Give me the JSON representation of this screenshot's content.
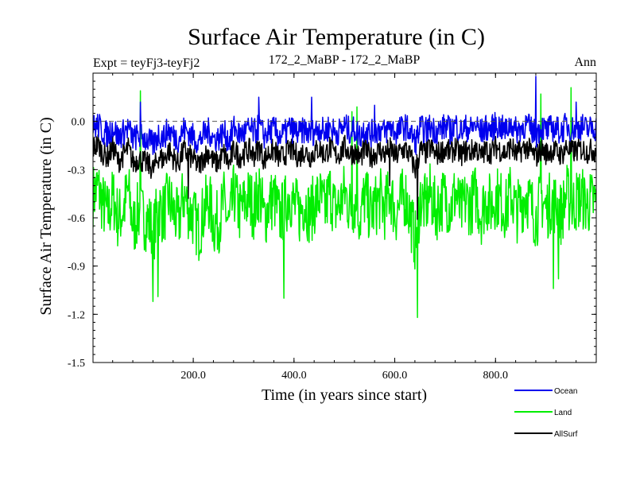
{
  "chart_data": {
    "type": "line",
    "title": "Surface Air Temperature (in C)",
    "subtitle_left": "Expt = teyFj3-teyFj2",
    "subtitle_center": "172_2_MaBP - 172_2_MaBP",
    "subtitle_right": "Ann",
    "xlabel": "Time (in years since start)",
    "ylabel": "Surface Air Temperature (in C)",
    "xlim": [
      1,
      1000
    ],
    "ylim": [
      -1.5,
      0.3
    ],
    "x_ticks": [
      200,
      400,
      600,
      800
    ],
    "x_tick_labels": [
      "200.0",
      "400.0",
      "600.0",
      "800.0"
    ],
    "y_ticks": [
      0.0,
      -0.3,
      -0.6,
      -0.9,
      -1.2,
      -1.5
    ],
    "y_tick_labels": [
      "0.0",
      "-0.3",
      "-0.6",
      "-0.9",
      "-1.2",
      "-1.5"
    ],
    "zero_line": true,
    "series": [
      {
        "name": "Land",
        "color": "#00ee00",
        "x_start": 1,
        "x_step": 10,
        "values": [
          -0.46,
          -0.41,
          -0.52,
          -0.58,
          -0.47,
          -0.61,
          -0.55,
          -0.43,
          -0.66,
          -0.56,
          -0.6,
          -0.62,
          -0.7,
          -0.52,
          -0.58,
          -0.48,
          -0.57,
          -0.63,
          -0.45,
          -0.55,
          -0.6,
          -0.68,
          -0.56,
          -0.49,
          -0.64,
          -0.62,
          -0.5,
          -0.66,
          -0.44,
          -0.57,
          -0.52,
          -0.47,
          -0.55,
          -0.42,
          -0.61,
          -0.51,
          -0.48,
          -0.6,
          -0.54,
          -0.45,
          -0.53,
          -0.57,
          -0.49,
          -0.58,
          -0.51,
          -0.47,
          -0.56,
          -0.43,
          -0.55,
          -0.52,
          -0.44,
          -0.54,
          -0.5,
          -0.6,
          -0.46,
          -0.57,
          -0.53,
          -0.48,
          -0.55,
          -0.43,
          -0.58,
          -0.51,
          -0.46,
          -0.59,
          -0.75,
          -0.48,
          -0.53,
          -0.45,
          -0.56,
          -0.5,
          -0.47,
          -0.54,
          -0.44,
          -0.57,
          -0.49,
          -0.52,
          -0.45,
          -0.58,
          -0.48,
          -0.53,
          -0.46,
          -0.5,
          -0.55,
          -0.44,
          -0.57,
          -0.51,
          -0.45,
          -0.53,
          -0.6,
          -0.47,
          -0.55,
          -0.49,
          -0.52,
          -0.58,
          -0.45,
          -0.54,
          -0.49,
          -0.47,
          -0.52,
          -0.5
        ],
        "spikes": [
          [
            95,
            0.19
          ],
          [
            120,
            -1.12
          ],
          [
            130,
            -1.09
          ],
          [
            380,
            -1.1
          ],
          [
            515,
            0.06
          ],
          [
            525,
            0.09
          ],
          [
            645,
            -1.22
          ],
          [
            890,
            -0.92
          ],
          [
            890,
            0.17
          ],
          [
            915,
            -1.04
          ],
          [
            925,
            -0.98
          ],
          [
            950,
            0.21
          ]
        ]
      },
      {
        "name": "AllSurf",
        "color": "#000000",
        "x_start": 1,
        "x_step": 10,
        "values": [
          -0.17,
          -0.14,
          -0.2,
          -0.22,
          -0.16,
          -0.25,
          -0.21,
          -0.17,
          -0.26,
          -0.23,
          -0.25,
          -0.27,
          -0.3,
          -0.22,
          -0.24,
          -0.18,
          -0.23,
          -0.26,
          -0.18,
          -0.21,
          -0.24,
          -0.28,
          -0.22,
          -0.19,
          -0.26,
          -0.25,
          -0.2,
          -0.27,
          -0.17,
          -0.22,
          -0.2,
          -0.18,
          -0.21,
          -0.16,
          -0.24,
          -0.19,
          -0.18,
          -0.23,
          -0.21,
          -0.17,
          -0.2,
          -0.22,
          -0.18,
          -0.22,
          -0.19,
          -0.17,
          -0.21,
          -0.16,
          -0.21,
          -0.2,
          -0.16,
          -0.2,
          -0.19,
          -0.23,
          -0.17,
          -0.22,
          -0.2,
          -0.18,
          -0.21,
          -0.16,
          -0.22,
          -0.19,
          -0.17,
          -0.22,
          -0.3,
          -0.18,
          -0.2,
          -0.16,
          -0.21,
          -0.19,
          -0.17,
          -0.2,
          -0.16,
          -0.21,
          -0.18,
          -0.19,
          -0.16,
          -0.22,
          -0.18,
          -0.19,
          -0.16,
          -0.18,
          -0.2,
          -0.15,
          -0.21,
          -0.18,
          -0.16,
          -0.19,
          -0.22,
          -0.17,
          -0.2,
          -0.18,
          -0.19,
          -0.21,
          -0.16,
          -0.19,
          -0.18,
          -0.17,
          -0.19,
          -0.18
        ],
        "spikes": [
          [
            190,
            -0.48
          ],
          [
            645,
            -0.61
          ],
          [
            590,
            -0.4
          ]
        ]
      },
      {
        "name": "Ocean",
        "color": "#0000ee",
        "x_start": 1,
        "x_step": 10,
        "values": [
          -0.04,
          -0.02,
          -0.07,
          -0.08,
          -0.03,
          -0.1,
          -0.07,
          -0.04,
          -0.11,
          -0.09,
          -0.1,
          -0.12,
          -0.15,
          -0.08,
          -0.1,
          -0.05,
          -0.09,
          -0.11,
          -0.05,
          -0.07,
          -0.1,
          -0.13,
          -0.08,
          -0.06,
          -0.11,
          -0.1,
          -0.07,
          -0.12,
          -0.04,
          -0.08,
          -0.07,
          -0.05,
          -0.07,
          -0.03,
          -0.09,
          -0.06,
          -0.05,
          -0.09,
          -0.08,
          -0.04,
          -0.06,
          -0.08,
          -0.05,
          -0.08,
          -0.06,
          -0.04,
          -0.07,
          -0.03,
          -0.07,
          -0.06,
          -0.03,
          -0.06,
          -0.05,
          -0.09,
          -0.04,
          -0.08,
          -0.06,
          -0.05,
          -0.07,
          -0.03,
          -0.07,
          -0.05,
          -0.03,
          -0.07,
          -0.13,
          -0.04,
          -0.06,
          -0.03,
          -0.06,
          -0.05,
          -0.03,
          -0.06,
          -0.02,
          -0.06,
          -0.04,
          -0.05,
          -0.02,
          -0.07,
          -0.04,
          -0.05,
          -0.02,
          -0.04,
          -0.06,
          -0.01,
          -0.06,
          -0.04,
          -0.02,
          -0.05,
          -0.08,
          -0.03,
          -0.06,
          -0.04,
          -0.05,
          -0.06,
          -0.02,
          -0.05,
          -0.04,
          -0.03,
          -0.05,
          -0.04
        ],
        "spikes": [
          [
            95,
            0.12
          ],
          [
            330,
            0.15
          ],
          [
            435,
            0.15
          ],
          [
            880,
            0.28
          ],
          [
            960,
            0.12
          ],
          [
            560,
            0.1
          ]
        ]
      }
    ],
    "legend_placement": "bottom-right"
  }
}
